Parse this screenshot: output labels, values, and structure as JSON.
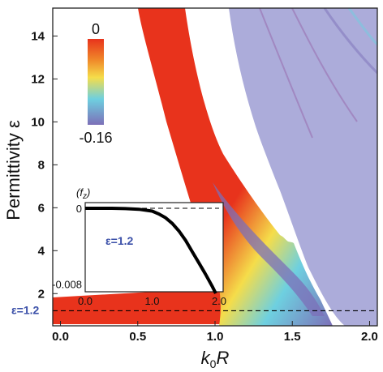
{
  "chart_data": [
    {
      "type": "heatmap",
      "xlabel": "k₀R",
      "ylabel": "Permittivity ε",
      "xlim": [
        -0.05,
        2.05
      ],
      "ylim": [
        0.5,
        15.3
      ],
      "x_ticks": [
        "0.0",
        "0.5",
        "1.0",
        "1.5",
        "2.0"
      ],
      "y_ticks": [
        "2",
        "4",
        "6",
        "8",
        "10",
        "12",
        "14"
      ],
      "colorbar": {
        "max_label": "0",
        "min_label": "-0.16",
        "max": 0,
        "min": -0.16
      },
      "reference_line": {
        "y": 1.2,
        "label": "ε=1.2",
        "color": "#3a4fa8"
      },
      "colors": {
        "red": "#e8331c",
        "orange": "#f08a2a",
        "yellow": "#f5dd4a",
        "cyan": "#6ed0e0",
        "lavender": "#a8a8d8",
        "purple": "#7c6fb8"
      }
    },
    {
      "type": "line",
      "ylabel": "⟨f_z⟩",
      "x_ticks": [
        "0.0",
        "1.0",
        "2.0"
      ],
      "y_ticks": [
        "0",
        "-0.008"
      ],
      "xlim": [
        0,
        2
      ],
      "ylim": [
        -0.009,
        0.0005
      ],
      "annotation": "ε=1.2",
      "series": [
        {
          "x": [
            0,
            0.2,
            0.4,
            0.6,
            0.8,
            1.0,
            1.1,
            1.2,
            1.3,
            1.4,
            1.5,
            1.6,
            1.7,
            1.8,
            1.9,
            1.95
          ],
          "values": [
            0,
            0,
            0,
            -3e-05,
            -0.0001,
            -0.0003,
            -0.0006,
            -0.001,
            -0.0016,
            -0.0024,
            -0.0034,
            -0.0046,
            -0.0058,
            -0.007,
            -0.0083,
            -0.009
          ]
        }
      ]
    }
  ]
}
